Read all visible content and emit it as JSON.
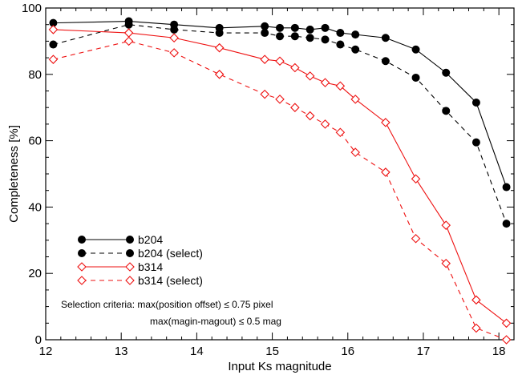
{
  "chart_data": {
    "type": "line",
    "xlabel": "Input Ks magnitude",
    "ylabel": "Completeness [%]",
    "xlim": [
      12,
      18.2
    ],
    "ylim": [
      0,
      100
    ],
    "xticks": [
      12,
      13,
      14,
      15,
      16,
      17,
      18
    ],
    "yticks": [
      0,
      20,
      40,
      60,
      80,
      100
    ],
    "grid": false,
    "legend_position": "bottom-left",
    "series": [
      {
        "name": "b204",
        "color": "#000000",
        "dash": "solid",
        "marker": "filled-circle",
        "x": [
          12.1,
          13.1,
          13.7,
          14.3,
          14.9,
          15.1,
          15.3,
          15.5,
          15.7,
          15.9,
          16.1,
          16.5,
          16.9,
          17.3,
          17.7,
          18.1
        ],
        "y": [
          95.5,
          96,
          95,
          94,
          94.5,
          94,
          94,
          93.5,
          94,
          92.5,
          92,
          91,
          87.5,
          80.5,
          71.5,
          46
        ]
      },
      {
        "name": "b204 (select)",
        "color": "#000000",
        "dash": "dashed",
        "marker": "filled-circle",
        "x": [
          12.1,
          13.1,
          13.7,
          14.3,
          14.9,
          15.1,
          15.3,
          15.5,
          15.7,
          15.9,
          16.1,
          16.5,
          16.9,
          17.3,
          17.7,
          18.1
        ],
        "y": [
          89,
          95,
          93.5,
          92.5,
          92.5,
          91.5,
          91.5,
          91,
          90.5,
          89,
          87.5,
          84,
          79,
          69,
          59.5,
          35
        ]
      },
      {
        "name": "b314",
        "color": "#ee1111",
        "dash": "solid",
        "marker": "open-diamond",
        "x": [
          12.1,
          13.1,
          13.7,
          14.3,
          14.9,
          15.1,
          15.3,
          15.5,
          15.7,
          15.9,
          16.1,
          16.5,
          16.9,
          17.3,
          17.7,
          18.1
        ],
        "y": [
          93.5,
          92.5,
          91,
          88,
          84.5,
          84,
          82,
          79.5,
          77.5,
          76.5,
          72.5,
          65.5,
          48.5,
          34.5,
          12,
          5
        ]
      },
      {
        "name": "b314 (select)",
        "color": "#ee1111",
        "dash": "dashed",
        "marker": "open-diamond",
        "x": [
          12.1,
          13.1,
          13.7,
          14.3,
          14.9,
          15.1,
          15.3,
          15.5,
          15.7,
          15.9,
          16.1,
          16.5,
          16.9,
          17.3,
          17.7,
          18.1
        ],
        "y": [
          84.5,
          90,
          86.5,
          80,
          74,
          72.5,
          70,
          67.5,
          65,
          62.5,
          56.5,
          50.5,
          30.5,
          23,
          3.5,
          0
        ]
      }
    ],
    "annotations": [
      "Selection criteria: max(position offset) ≤ 0.75 pixel",
      "max(magin-magout) ≤ 0.5 mag"
    ]
  }
}
